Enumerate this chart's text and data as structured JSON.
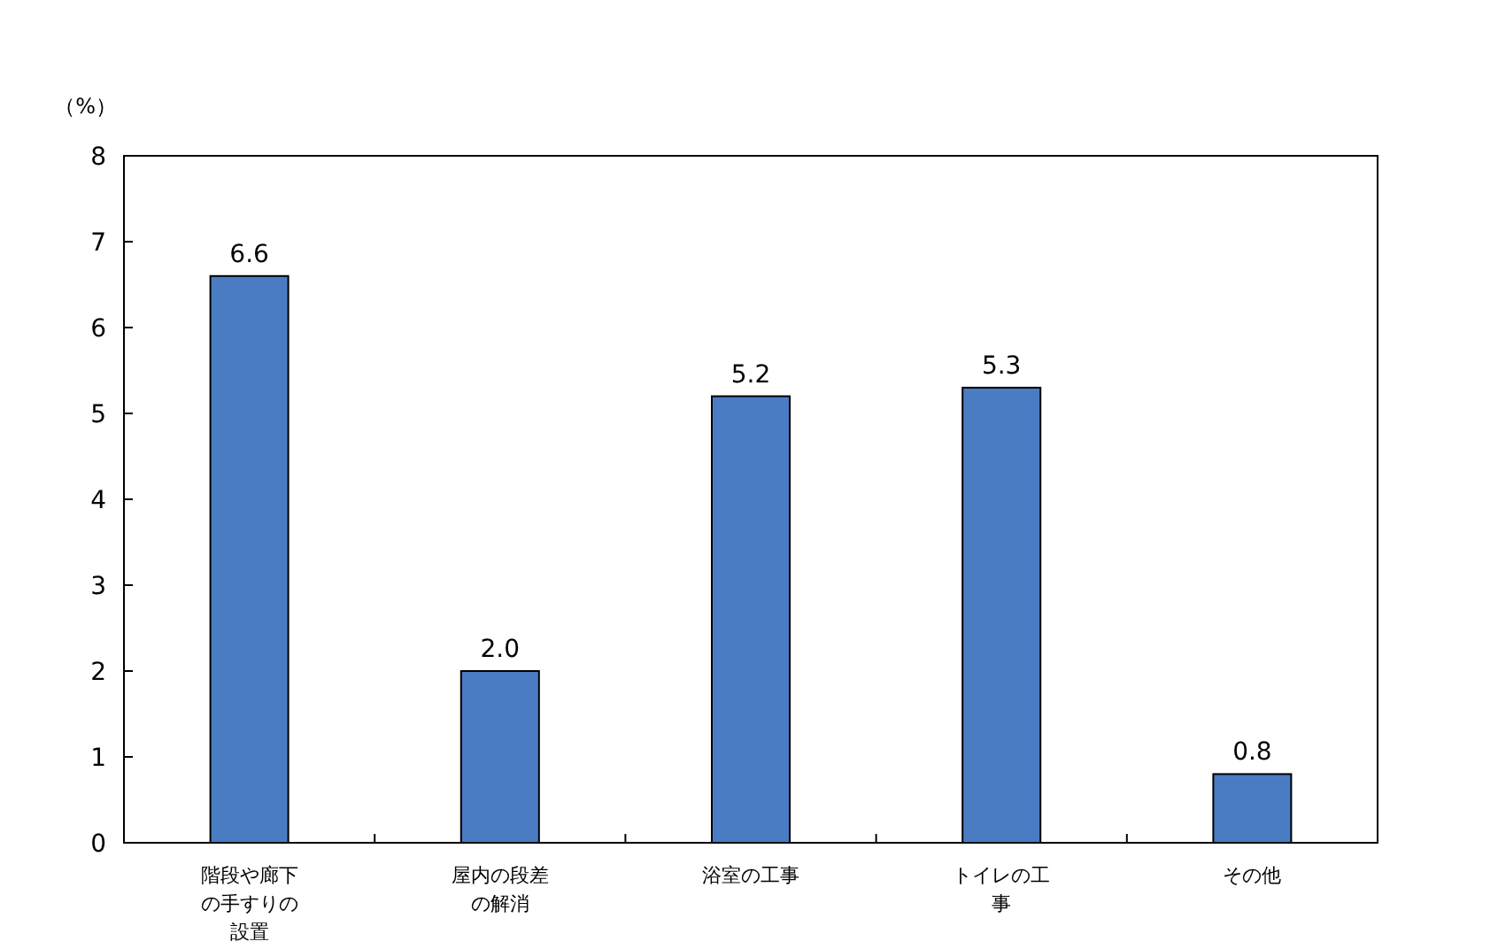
{
  "chart_data": {
    "type": "bar",
    "ylabel": "（%）",
    "categories": [
      "階段や廊下の手すりの設置",
      "屋内の段差の解消",
      "浴室の工事",
      "トイレの工事",
      "その他"
    ],
    "values": [
      6.6,
      2.0,
      5.2,
      5.3,
      0.8
    ],
    "value_labels": [
      "6.6",
      "2.0",
      "5.2",
      "5.3",
      "0.8"
    ],
    "color": "#4a7cc4",
    "ylim": [
      0,
      8
    ],
    "yticks": [
      0,
      1,
      2,
      3,
      4,
      5,
      6,
      7,
      8
    ],
    "grid": false
  }
}
